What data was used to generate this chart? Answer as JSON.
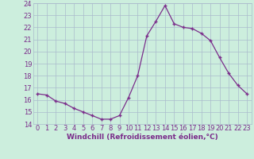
{
  "hours": [
    0,
    1,
    2,
    3,
    4,
    5,
    6,
    7,
    8,
    9,
    10,
    11,
    12,
    13,
    14,
    15,
    16,
    17,
    18,
    19,
    20,
    21,
    22,
    23
  ],
  "windchill": [
    16.5,
    16.4,
    15.9,
    15.7,
    15.3,
    15.0,
    14.7,
    14.4,
    14.4,
    14.7,
    16.2,
    18.0,
    21.3,
    22.5,
    23.8,
    22.3,
    22.0,
    21.9,
    21.5,
    20.9,
    19.5,
    18.2,
    17.2,
    16.5
  ],
  "xlabel": "Windchill (Refroidissement éolien,°C)",
  "ylim": [
    14,
    24
  ],
  "xlim_min": -0.5,
  "xlim_max": 23.5,
  "yticks": [
    14,
    15,
    16,
    17,
    18,
    19,
    20,
    21,
    22,
    23,
    24
  ],
  "xticks": [
    0,
    1,
    2,
    3,
    4,
    5,
    6,
    7,
    8,
    9,
    10,
    11,
    12,
    13,
    14,
    15,
    16,
    17,
    18,
    19,
    20,
    21,
    22,
    23
  ],
  "line_color": "#7b2d8b",
  "marker": "+",
  "marker_size": 3,
  "marker_edge_width": 1.0,
  "line_width": 0.9,
  "bg_color": "#cceedd",
  "grid_color": "#aabbcc",
  "tick_color": "#7b2d8b",
  "label_color": "#7b2d8b",
  "tick_font_size": 6.0,
  "xlabel_font_size": 6.5
}
